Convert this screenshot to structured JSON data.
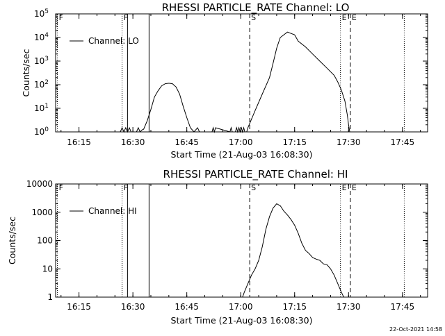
{
  "chart_data": [
    {
      "type": "line",
      "title": "RHESSI PARTICLE_RATE Channel: LO",
      "xlabel": "Start Time (21-Aug-03 16:08:30)",
      "ylabel": "Counts/sec",
      "yscale": "log",
      "ylim": [
        1,
        100000
      ],
      "xlim": [
        "16:08:30",
        "17:52:00"
      ],
      "x_ticks": [
        "16:15",
        "16:30",
        "16:45",
        "17:00",
        "17:15",
        "17:30",
        "17:45"
      ],
      "y_ticks": [
        "10^0",
        "10^1",
        "10^2",
        "10^3",
        "10^4",
        "10^5"
      ],
      "legend": {
        "position": "top-left",
        "entries": [
          "Channel: LO"
        ]
      },
      "series": [
        {
          "name": "Channel: LO",
          "x": [
            "16:26:30",
            "16:27:00",
            "16:27:30",
            "16:28:00",
            "16:28:30",
            "16:29:00",
            "16:29:30",
            "16:30:00",
            "16:31:00",
            "16:31:30",
            "16:32:00",
            "16:32:30",
            "16:33:00",
            "16:34:00",
            "16:35:00",
            "16:36:00",
            "16:37:00",
            "16:38:00",
            "16:39:00",
            "16:40:00",
            "16:41:00",
            "16:42:00",
            "16:43:00",
            "16:44:00",
            "16:45:00",
            "16:46:00",
            "16:47:00",
            "16:48:00",
            "16:48:30",
            "16:52:00",
            "16:52:20",
            "16:52:40",
            "16:53:00",
            "16:57:00",
            "16:57:20",
            "16:57:40",
            "16:58:30",
            "16:58:50",
            "16:59:10",
            "16:59:30",
            "16:59:50",
            "17:00:10",
            "17:00:30",
            "17:00:50",
            "17:01:10",
            "17:01:40",
            "17:02:00",
            "17:04:00",
            "17:06:00",
            "17:08:00",
            "17:09:00",
            "17:10:00",
            "17:11:00",
            "17:13:00",
            "17:15:00",
            "17:16:00",
            "17:18:00",
            "17:20:00",
            "17:22:00",
            "17:24:00",
            "17:26:00",
            "17:27:00",
            "17:28:00",
            "17:29:00",
            "17:29:40",
            "17:30:00",
            "17:30:20"
          ],
          "y": [
            1,
            1.5,
            1,
            1.5,
            1,
            1.5,
            1,
            1,
            1,
            1.5,
            1,
            1.2,
            1.3,
            3,
            9,
            30,
            55,
            90,
            110,
            115,
            110,
            80,
            40,
            12,
            4,
            1.5,
            1,
            1.5,
            1,
            1,
            1.5,
            1,
            1.5,
            1,
            1.5,
            1,
            1,
            1.5,
            1,
            1.5,
            1,
            1.5,
            1,
            1.5,
            1,
            1,
            1.5,
            8,
            40,
            200,
            800,
            3500,
            10000,
            17000,
            13000,
            7000,
            4000,
            2000,
            1000,
            500,
            250,
            130,
            60,
            20,
            5,
            2,
            1
          ]
        }
      ],
      "markers": [
        {
          "label": "F",
          "x": "16:09:00",
          "style": "dotted"
        },
        {
          "label": "F",
          "x": "16:27:00",
          "style": "dotted"
        },
        {
          "label": "",
          "x": "16:28:30",
          "style": "solid"
        },
        {
          "label": "",
          "x": "16:34:30",
          "style": "solid"
        },
        {
          "label": "S",
          "x": "17:02:30",
          "style": "dashed"
        },
        {
          "label": "E",
          "x": "17:27:45",
          "style": "dotted"
        },
        {
          "label": "E",
          "x": "17:30:30",
          "style": "dashed"
        },
        {
          "label": "",
          "x": "17:45:30",
          "style": "dotted"
        }
      ]
    },
    {
      "type": "line",
      "title": "RHESSI PARTICLE_RATE Channel: HI",
      "xlabel": "Start Time (21-Aug-03 16:08:30)",
      "ylabel": "Counts/sec",
      "yscale": "log",
      "ylim": [
        1,
        10000
      ],
      "xlim": [
        "16:08:30",
        "17:52:00"
      ],
      "x_ticks": [
        "16:15",
        "16:30",
        "16:45",
        "17:00",
        "17:15",
        "17:30",
        "17:45"
      ],
      "y_ticks": [
        "1",
        "10",
        "100",
        "1000",
        "10000"
      ],
      "legend": {
        "position": "top-left",
        "entries": [
          "Channel: HI"
        ]
      },
      "series": [
        {
          "name": "Channel: HI",
          "x": [
            "17:00:30",
            "17:01:00",
            "17:02:00",
            "17:03:00",
            "17:04:00",
            "17:05:00",
            "17:06:00",
            "17:07:00",
            "17:08:00",
            "17:09:00",
            "17:10:00",
            "17:11:00",
            "17:12:00",
            "17:13:00",
            "17:14:00",
            "17:15:00",
            "17:16:00",
            "17:17:00",
            "17:18:00",
            "17:19:00",
            "17:20:00",
            "17:21:00",
            "17:22:00",
            "17:23:00",
            "17:24:00",
            "17:25:00",
            "17:26:00",
            "17:27:00",
            "17:28:00",
            "17:28:40"
          ],
          "y": [
            1,
            1.5,
            3,
            6,
            10,
            20,
            60,
            250,
            700,
            1400,
            2000,
            1700,
            1100,
            800,
            550,
            350,
            180,
            80,
            45,
            35,
            25,
            22,
            20,
            15,
            14,
            10,
            6,
            3,
            1.5,
            1
          ]
        }
      ],
      "markers": [
        {
          "label": "F",
          "x": "16:09:00",
          "style": "dotted"
        },
        {
          "label": "F",
          "x": "16:27:00",
          "style": "dotted"
        },
        {
          "label": "",
          "x": "16:28:30",
          "style": "solid"
        },
        {
          "label": "",
          "x": "16:34:30",
          "style": "solid"
        },
        {
          "label": "S",
          "x": "17:02:30",
          "style": "dashed"
        },
        {
          "label": "E",
          "x": "17:27:45",
          "style": "dotted"
        },
        {
          "label": "E",
          "x": "17:30:30",
          "style": "dashed"
        },
        {
          "label": "",
          "x": "17:45:30",
          "style": "dotted"
        }
      ]
    }
  ],
  "footer": {
    "timestamp": "22-Oct-2021 14:58"
  }
}
